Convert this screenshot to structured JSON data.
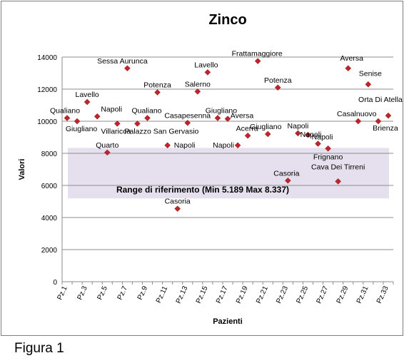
{
  "chart_data": {
    "type": "scatter",
    "title": "Zinco",
    "xlabel": "Pazienti",
    "ylabel": "Valori",
    "ylim": [
      0,
      14000
    ],
    "yticks": [
      0,
      2000,
      4000,
      6000,
      8000,
      10000,
      12000,
      14000
    ],
    "grid": "horizontal",
    "marker_color": "#c0242b",
    "band_color": "#e6e0ee",
    "x_tick_labels": [
      "Pz.1",
      "Pz.3",
      "Pz.5",
      "Pz.7",
      "Pz.9",
      "Pz.11",
      "Pz.13",
      "Pz.15",
      "Pz.17",
      "Pz.19",
      "Pz.21",
      "Pz.23",
      "Pz.25",
      "Pz.27",
      "Pz.29",
      "Pz.31",
      "Pz.33"
    ],
    "reference_range": {
      "min": 5189,
      "max": 8337,
      "label": "Range di riferimento  (Min 5.189  Max  8.337)"
    },
    "points": [
      {
        "x": "Pz.1",
        "y": 10200,
        "label": "Qualiano"
      },
      {
        "x": "Pz.2",
        "y": 10000,
        "label": "Giugliano"
      },
      {
        "x": "Pz.3",
        "y": 11200,
        "label": "Lavello"
      },
      {
        "x": "Pz.4",
        "y": 10300,
        "label": "Napoli"
      },
      {
        "x": "Pz.5",
        "y": 8050,
        "label": "Quarto"
      },
      {
        "x": "Pz.6",
        "y": 9850,
        "label": "Villaricca"
      },
      {
        "x": "Pz.7",
        "y": 13300,
        "label": "Sessa Aurunca"
      },
      {
        "x": "Pz.8",
        "y": 9850,
        "label": "Palazzo San Gervasio"
      },
      {
        "x": "Pz.9",
        "y": 10200,
        "label": "Qualiano"
      },
      {
        "x": "Pz.10",
        "y": 11800,
        "label": "Potenza"
      },
      {
        "x": "Pz.11",
        "y": 8500,
        "label": "Napoli"
      },
      {
        "x": "Pz.12",
        "y": 4550,
        "label": "Casoria"
      },
      {
        "x": "Pz.13",
        "y": 9900,
        "label": "Casapesenna"
      },
      {
        "x": "Pz.14",
        "y": 11850,
        "label": "Salerno"
      },
      {
        "x": "Pz.15",
        "y": 13050,
        "label": "Lavello"
      },
      {
        "x": "Pz.16",
        "y": 10200,
        "label": "Giugliano"
      },
      {
        "x": "Pz.17",
        "y": 10150,
        "label": "Aversa"
      },
      {
        "x": "Pz.18",
        "y": 8500,
        "label": "Napoli"
      },
      {
        "x": "Pz.19",
        "y": 9100,
        "label": "Acerra"
      },
      {
        "x": "Pz.20",
        "y": 13750,
        "label": "Frattamaggiore"
      },
      {
        "x": "Pz.21",
        "y": 9200,
        "label": "Giugliano"
      },
      {
        "x": "Pz.22",
        "y": 12100,
        "label": "Potenza"
      },
      {
        "x": "Pz.23",
        "y": 6300,
        "label": "Casoria"
      },
      {
        "x": "Pz.24",
        "y": 9250,
        "label": "Napoli"
      },
      {
        "x": "Pz.25",
        "y": 9150,
        "label": "Napoli"
      },
      {
        "x": "Pz.26",
        "y": 8600,
        "label": "Napoli"
      },
      {
        "x": "Pz.27",
        "y": 8300,
        "label": "Frignano"
      },
      {
        "x": "Pz.28",
        "y": 6250,
        "label": "Cava Dei Tirreni"
      },
      {
        "x": "Pz.29",
        "y": 13300,
        "label": "Aversa"
      },
      {
        "x": "Pz.30",
        "y": 10000,
        "label": "Casalnuovo"
      },
      {
        "x": "Pz.31",
        "y": 12300,
        "label": "Senise"
      },
      {
        "x": "Pz.32",
        "y": 10000,
        "label": "Brienza"
      },
      {
        "x": "Pz.33",
        "y": 10350,
        "label": "Orta Di Atella"
      }
    ]
  },
  "caption": "Figura 1"
}
